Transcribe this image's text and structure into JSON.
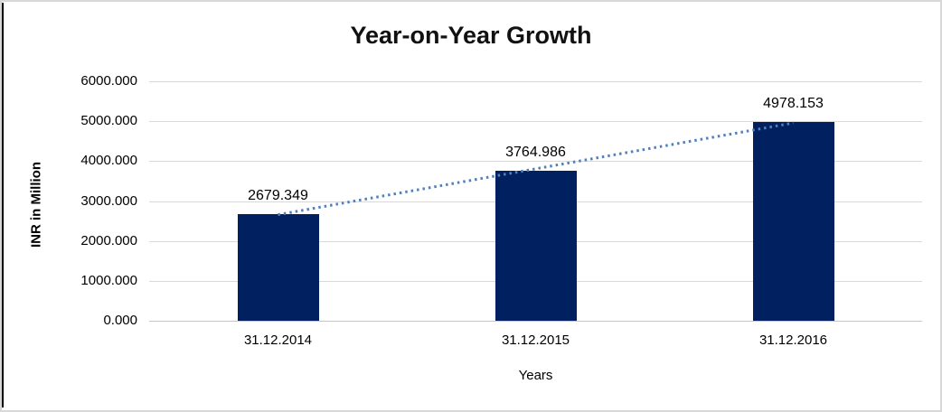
{
  "chart_data": {
    "type": "bar",
    "title": "Year-on-Year Growth",
    "xlabel": "Years",
    "ylabel": "INR in Million",
    "categories": [
      "31.12.2014",
      "31.12.2015",
      "31.12.2016"
    ],
    "values": [
      2679.349,
      3764.986,
      4978.153
    ],
    "data_labels": [
      "2679.349",
      "3764.986",
      "4978.153"
    ],
    "ylim": [
      0,
      6000
    ],
    "y_ticks": [
      0,
      1000,
      2000,
      3000,
      4000,
      5000,
      6000
    ],
    "y_tick_labels": [
      "0.000",
      "1000.000",
      "2000.000",
      "3000.000",
      "4000.000",
      "5000.000",
      "6000.000"
    ],
    "grid": true,
    "legend": false,
    "bar_color": "#002060",
    "trendline": {
      "type": "linear",
      "style": "dotted",
      "color": "#4f81bd"
    }
  }
}
